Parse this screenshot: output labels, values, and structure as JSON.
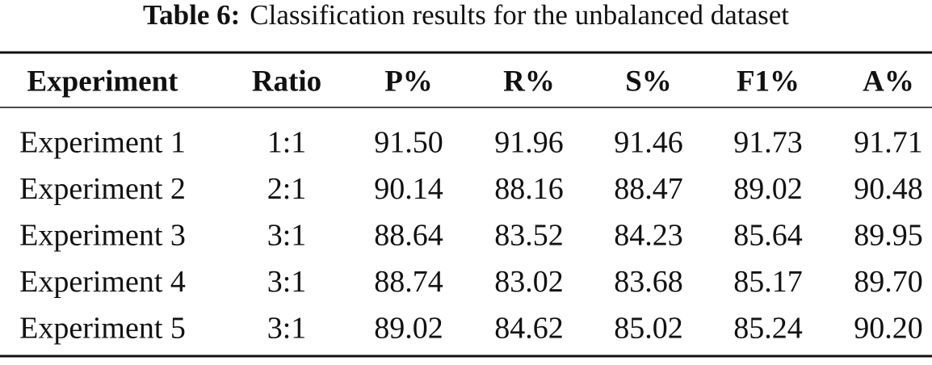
{
  "caption": {
    "label": "Table 6:",
    "text": "Classification results for the unbalanced dataset"
  },
  "table": {
    "header": [
      "Experiment",
      "Ratio",
      "P%",
      "R%",
      "S%",
      "F1%",
      "A%"
    ],
    "rows": [
      [
        "Experiment 1",
        "1:1",
        "91.50",
        "91.96",
        "91.46",
        "91.73",
        "91.71"
      ],
      [
        "Experiment 2",
        "2:1",
        "90.14",
        "88.16",
        "88.47",
        "89.02",
        "90.48"
      ],
      [
        "Experiment 3",
        "3:1",
        "88.64",
        "83.52",
        "84.23",
        "85.64",
        "89.95"
      ],
      [
        "Experiment 4",
        "3:1",
        "88.74",
        "83.02",
        "83.68",
        "85.17",
        "89.70"
      ],
      [
        "Experiment 5",
        "3:1",
        "89.02",
        "84.62",
        "85.02",
        "85.24",
        "90.20"
      ]
    ]
  }
}
